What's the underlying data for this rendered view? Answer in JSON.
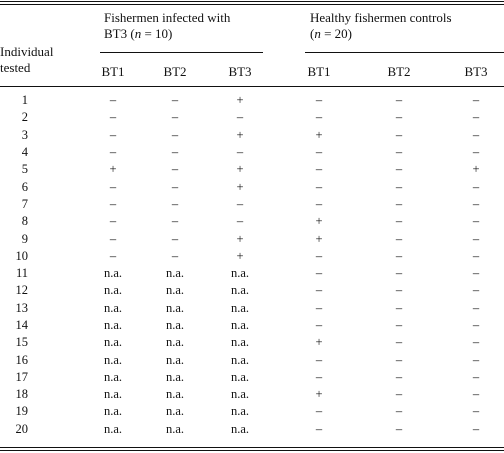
{
  "header": {
    "row_label_line1": "Individual",
    "row_label_line2": "tested",
    "group1_line1": "Fishermen infected with",
    "group1_line2": "BT3 (n = 10)",
    "group2_line1": "Healthy fishermen controls",
    "group2_line2": "(n = 20)",
    "group1_cols": [
      "BT1",
      "BT2",
      "BT3"
    ],
    "group2_cols": [
      "BT1",
      "BT2",
      "BT3"
    ]
  },
  "rows": [
    {
      "id": "1",
      "g1": [
        "–",
        "–",
        "+"
      ],
      "g2": [
        "–",
        "–",
        "–"
      ]
    },
    {
      "id": "2",
      "g1": [
        "–",
        "–",
        "–"
      ],
      "g2": [
        "–",
        "–",
        "–"
      ]
    },
    {
      "id": "3",
      "g1": [
        "–",
        "–",
        "+"
      ],
      "g2": [
        "+",
        "–",
        "–"
      ]
    },
    {
      "id": "4",
      "g1": [
        "–",
        "–",
        "–"
      ],
      "g2": [
        "–",
        "–",
        "–"
      ]
    },
    {
      "id": "5",
      "g1": [
        "+",
        "–",
        "+"
      ],
      "g2": [
        "–",
        "–",
        "+"
      ]
    },
    {
      "id": "6",
      "g1": [
        "–",
        "–",
        "+"
      ],
      "g2": [
        "–",
        "–",
        "–"
      ]
    },
    {
      "id": "7",
      "g1": [
        "–",
        "–",
        "–"
      ],
      "g2": [
        "–",
        "–",
        "–"
      ]
    },
    {
      "id": "8",
      "g1": [
        "–",
        "–",
        "–"
      ],
      "g2": [
        "+",
        "–",
        "–"
      ]
    },
    {
      "id": "9",
      "g1": [
        "–",
        "–",
        "+"
      ],
      "g2": [
        "+",
        "–",
        "–"
      ]
    },
    {
      "id": "10",
      "g1": [
        "–",
        "–",
        "+"
      ],
      "g2": [
        "–",
        "–",
        "–"
      ]
    },
    {
      "id": "11",
      "g1": [
        "n.a.",
        "n.a.",
        "n.a."
      ],
      "g2": [
        "–",
        "–",
        "–"
      ]
    },
    {
      "id": "12",
      "g1": [
        "n.a.",
        "n.a.",
        "n.a."
      ],
      "g2": [
        "–",
        "–",
        "–"
      ]
    },
    {
      "id": "13",
      "g1": [
        "n.a.",
        "n.a.",
        "n.a."
      ],
      "g2": [
        "–",
        "–",
        "–"
      ]
    },
    {
      "id": "14",
      "g1": [
        "n.a.",
        "n.a.",
        "n.a."
      ],
      "g2": [
        "–",
        "–",
        "–"
      ]
    },
    {
      "id": "15",
      "g1": [
        "n.a.",
        "n.a.",
        "n.a."
      ],
      "g2": [
        "+",
        "–",
        "–"
      ]
    },
    {
      "id": "16",
      "g1": [
        "n.a.",
        "n.a.",
        "n.a."
      ],
      "g2": [
        "–",
        "–",
        "–"
      ]
    },
    {
      "id": "17",
      "g1": [
        "n.a.",
        "n.a.",
        "n.a."
      ],
      "g2": [
        "–",
        "–",
        "–"
      ]
    },
    {
      "id": "18",
      "g1": [
        "n.a.",
        "n.a.",
        "n.a."
      ],
      "g2": [
        "+",
        "–",
        "–"
      ]
    },
    {
      "id": "19",
      "g1": [
        "n.a.",
        "n.a.",
        "n.a."
      ],
      "g2": [
        "–",
        "–",
        "–"
      ]
    },
    {
      "id": "20",
      "g1": [
        "n.a.",
        "n.a.",
        "n.a."
      ],
      "g2": [
        "–",
        "–",
        "–"
      ]
    }
  ]
}
